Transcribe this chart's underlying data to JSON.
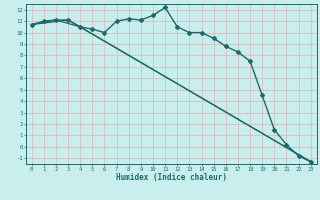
{
  "xlabel": "Humidex (Indice chaleur)",
  "background_color": "#c8eeee",
  "grid_color": "#dbbcbc",
  "line_color": "#1a6b6b",
  "xlim": [
    -0.5,
    23.5
  ],
  "ylim": [
    -1.5,
    12.5
  ],
  "xticks": [
    0,
    1,
    2,
    3,
    4,
    5,
    6,
    7,
    8,
    9,
    10,
    11,
    12,
    13,
    14,
    15,
    16,
    17,
    18,
    19,
    20,
    21,
    22,
    23
  ],
  "yticks": [
    -1,
    0,
    1,
    2,
    3,
    4,
    5,
    6,
    7,
    8,
    9,
    10,
    11,
    12
  ],
  "series": [
    {
      "x": [
        0,
        1,
        2,
        3,
        4,
        5,
        6,
        7,
        8,
        9,
        10,
        11,
        12,
        13,
        14,
        15,
        16,
        17,
        18,
        19,
        20,
        21,
        22,
        23
      ],
      "y": [
        10.7,
        11.0,
        11.1,
        11.1,
        10.5,
        10.3,
        10.0,
        11.0,
        11.2,
        11.1,
        11.5,
        12.2,
        10.5,
        10.0,
        10.0,
        9.5,
        8.8,
        8.3,
        7.5,
        4.5,
        1.5,
        0.2,
        -0.8,
        -1.3
      ],
      "marker": "D",
      "markersize": 2.0,
      "linewidth": 1.0
    },
    {
      "x": [
        0,
        2,
        4,
        23
      ],
      "y": [
        10.7,
        11.1,
        10.5,
        -1.3
      ],
      "marker": null,
      "markersize": 0,
      "linewidth": 0.9
    },
    {
      "x": [
        0,
        3,
        23
      ],
      "y": [
        10.7,
        11.1,
        -1.3
      ],
      "marker": null,
      "markersize": 0,
      "linewidth": 0.9
    }
  ]
}
